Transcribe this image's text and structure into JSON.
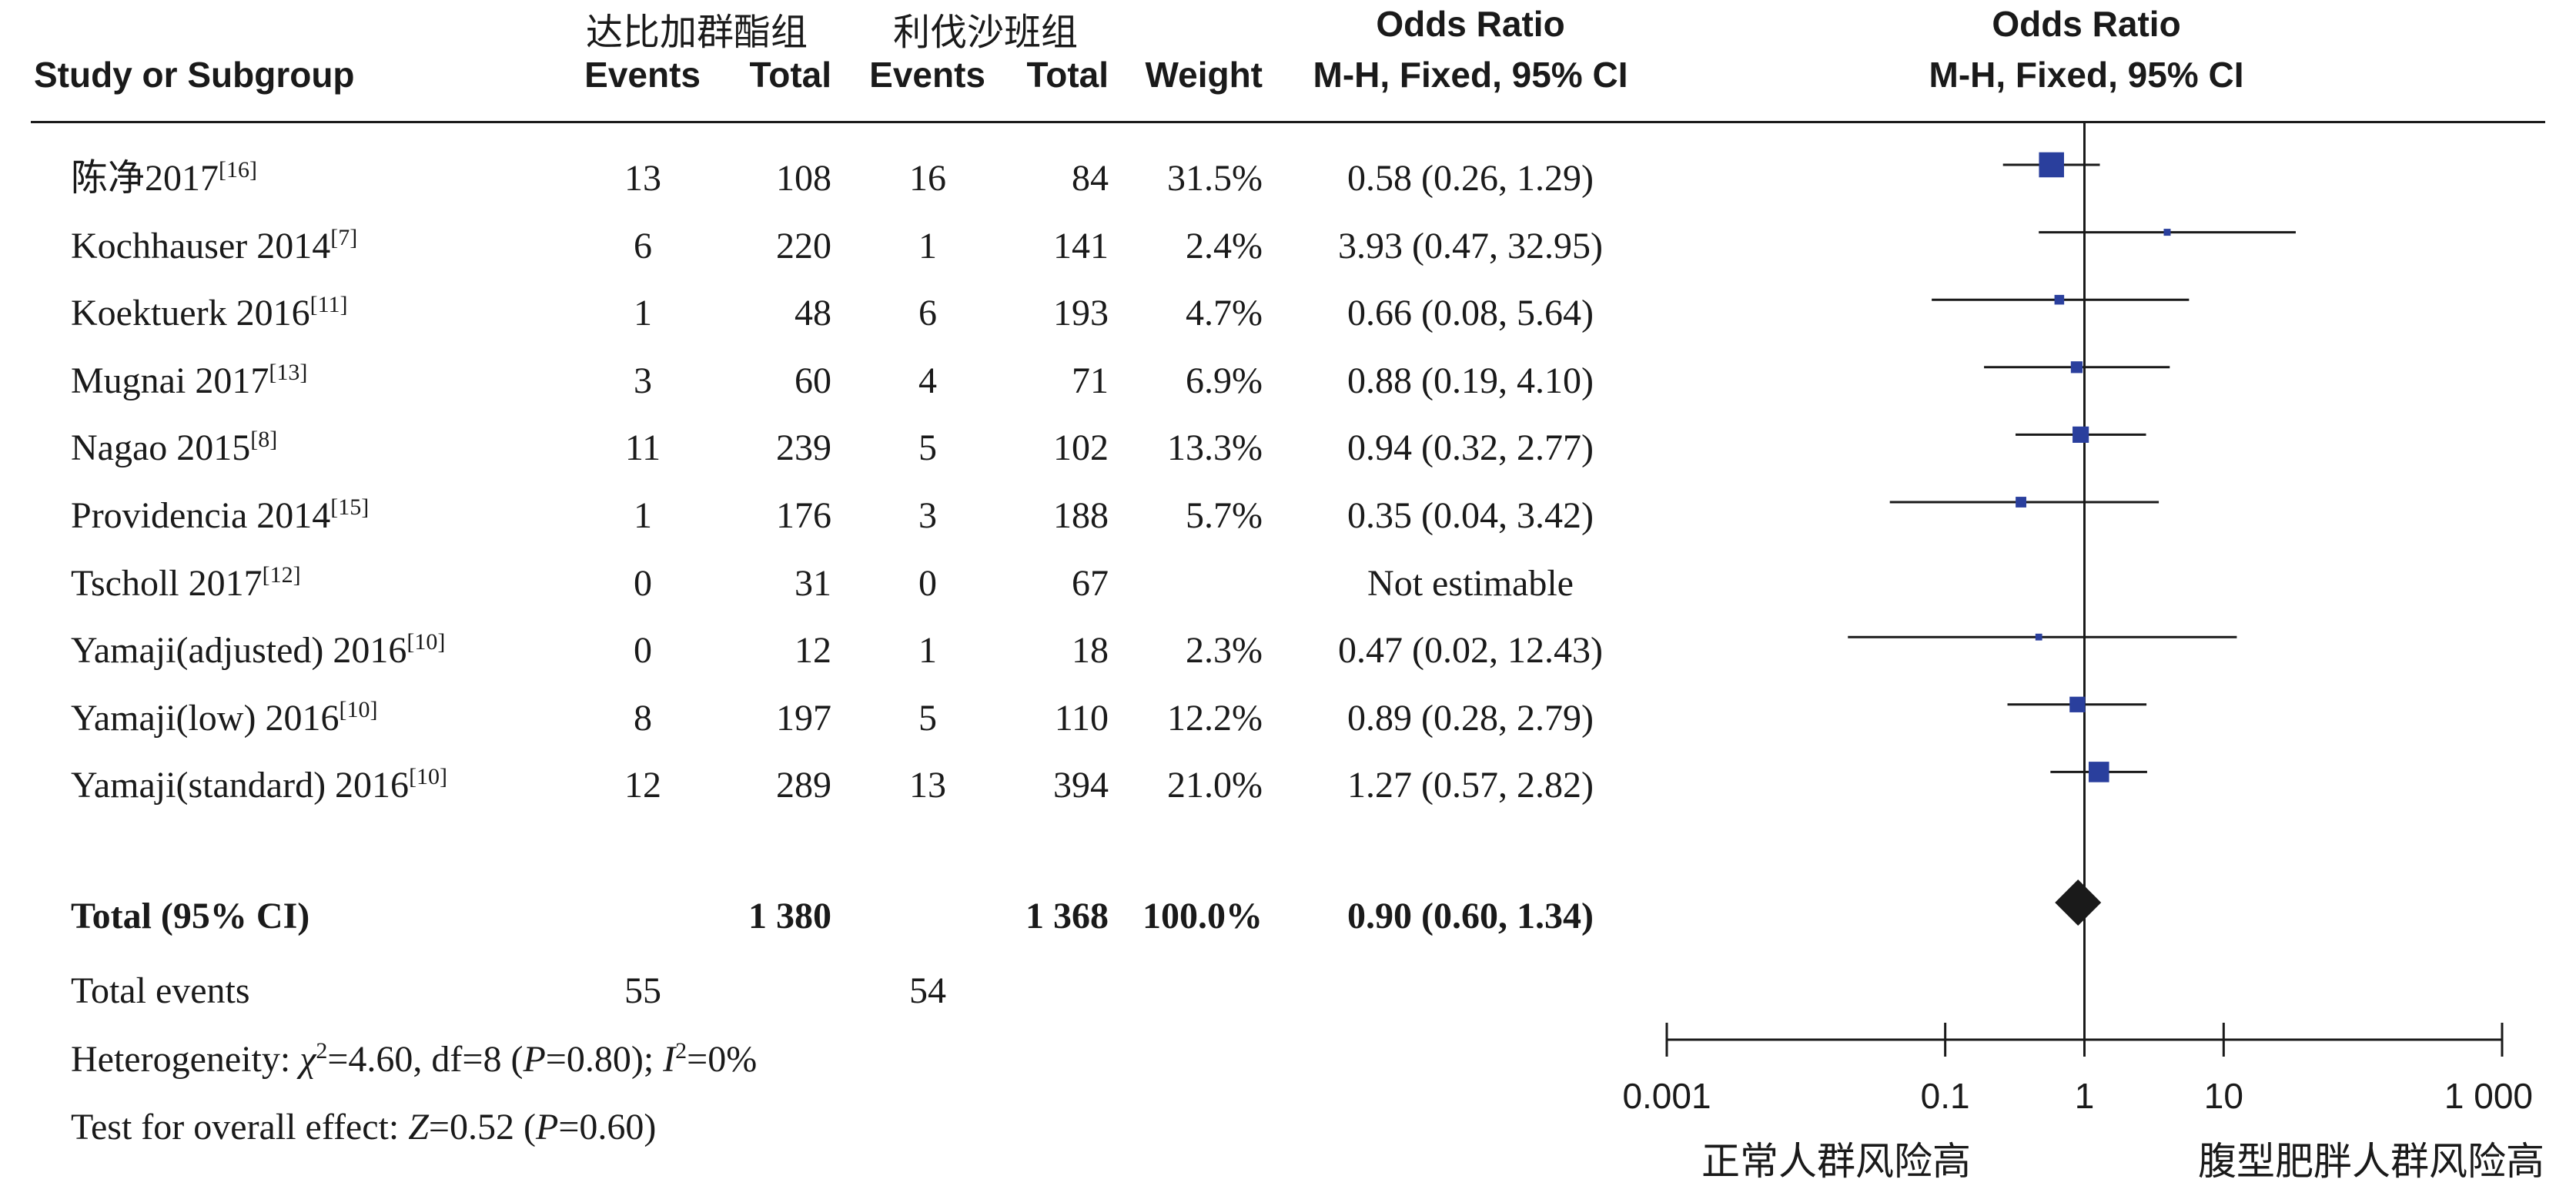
{
  "header": {
    "group1": "达比加群酯组",
    "group2": "利伐沙班组",
    "study": "Study or Subgroup",
    "events": "Events",
    "total": "Total",
    "weight": "Weight",
    "or_title": "Odds Ratio",
    "or_method": "M-H, Fixed, 95% CI",
    "plot_title": "Odds Ratio",
    "plot_method": "M-H, Fixed, 95% CI"
  },
  "rows": [
    {
      "study": "陈净2017",
      "ref": "[16]",
      "e1": "13",
      "t1": "108",
      "e2": "16",
      "t2": "84",
      "weight": "31.5%",
      "ci_text": "0.58 (0.26, 1.29)"
    },
    {
      "study": "Kochhauser 2014",
      "ref": "[7]",
      "e1": "6",
      "t1": "220",
      "e2": "1",
      "t2": "141",
      "weight": "2.4%",
      "ci_text": "3.93 (0.47, 32.95)"
    },
    {
      "study": "Koektuerk 2016",
      "ref": "[11]",
      "e1": "1",
      "t1": "48",
      "e2": "6",
      "t2": "193",
      "weight": "4.7%",
      "ci_text": "0.66 (0.08, 5.64)"
    },
    {
      "study": "Mugnai 2017",
      "ref": "[13]",
      "e1": "3",
      "t1": "60",
      "e2": "4",
      "t2": "71",
      "weight": "6.9%",
      "ci_text": "0.88 (0.19, 4.10)"
    },
    {
      "study": "Nagao 2015",
      "ref": "[8]",
      "e1": "11",
      "t1": "239",
      "e2": "5",
      "t2": "102",
      "weight": "13.3%",
      "ci_text": "0.94 (0.32, 2.77)"
    },
    {
      "study": "Providencia 2014",
      "ref": "[15]",
      "e1": "1",
      "t1": "176",
      "e2": "3",
      "t2": "188",
      "weight": "5.7%",
      "ci_text": "0.35 (0.04, 3.42)"
    },
    {
      "study": "Tscholl 2017",
      "ref": "[12]",
      "e1": "0",
      "t1": "31",
      "e2": "0",
      "t2": "67",
      "weight": "",
      "ci_text": "Not estimable"
    },
    {
      "study": "Yamaji(adjusted) 2016",
      "ref": "[10]",
      "e1": "0",
      "t1": "12",
      "e2": "1",
      "t2": "18",
      "weight": "2.3%",
      "ci_text": "0.47 (0.02, 12.43)"
    },
    {
      "study": "Yamaji(low) 2016",
      "ref": "[10]",
      "e1": "8",
      "t1": "197",
      "e2": "5",
      "t2": "110",
      "weight": "12.2%",
      "ci_text": "0.89 (0.28, 2.79)"
    },
    {
      "study": "Yamaji(standard) 2016",
      "ref": "[10]",
      "e1": "12",
      "t1": "289",
      "e2": "13",
      "t2": "394",
      "weight": "21.0%",
      "ci_text": "1.27 (0.57, 2.82)"
    }
  ],
  "total": {
    "label": "Total (95% CI)",
    "t1": "1 380",
    "t2": "1 368",
    "weight": "100.0%",
    "ci_text": "0.90 (0.60, 1.34)"
  },
  "total_events": {
    "label": "Total events",
    "e1": "55",
    "e2": "54"
  },
  "heterogeneity": {
    "prefix": "Heterogeneity: ",
    "chi": "χ",
    "chi_rest": "=4.60, df=8 (",
    "p": "P",
    "p_rest": "=0.80); ",
    "i": "I",
    "i_rest": "=0%"
  },
  "overall_effect": {
    "prefix": "Test for overall effect: ",
    "z": "Z",
    "z_rest": "=0.52 (",
    "p": "P",
    "p_rest": "=0.60)"
  },
  "axis": {
    "ticks": [
      0.001,
      0.1,
      1,
      10,
      1000
    ],
    "tick_labels": [
      "0.001",
      "0.1",
      "1",
      "10",
      "1 000"
    ],
    "left_label": "正常人群风险高",
    "right_label": "腹型肥胖人群风险高"
  },
  "colors": {
    "marker": "#2a3f9d",
    "diamond": "#1a1a1a",
    "line": "#1a1a1a"
  },
  "chart_data": {
    "type": "forest",
    "scale": "log",
    "xlim": [
      0.001,
      1000
    ],
    "reference_line": 1,
    "studies": [
      {
        "name": "陈净2017",
        "or": 0.58,
        "lo": 0.26,
        "hi": 1.29,
        "weight": 31.5
      },
      {
        "name": "Kochhauser 2014",
        "or": 3.93,
        "lo": 0.47,
        "hi": 32.95,
        "weight": 2.4
      },
      {
        "name": "Koektuerk 2016",
        "or": 0.66,
        "lo": 0.08,
        "hi": 5.64,
        "weight": 4.7
      },
      {
        "name": "Mugnai 2017",
        "or": 0.88,
        "lo": 0.19,
        "hi": 4.1,
        "weight": 6.9
      },
      {
        "name": "Nagao 2015",
        "or": 0.94,
        "lo": 0.32,
        "hi": 2.77,
        "weight": 13.3
      },
      {
        "name": "Providencia 2014",
        "or": 0.35,
        "lo": 0.04,
        "hi": 3.42,
        "weight": 5.7
      },
      {
        "name": "Tscholl 2017",
        "or": null,
        "lo": null,
        "hi": null,
        "weight": null
      },
      {
        "name": "Yamaji(adjusted) 2016",
        "or": 0.47,
        "lo": 0.02,
        "hi": 12.43,
        "weight": 2.3
      },
      {
        "name": "Yamaji(low) 2016",
        "or": 0.89,
        "lo": 0.28,
        "hi": 2.79,
        "weight": 12.2
      },
      {
        "name": "Yamaji(standard) 2016",
        "or": 1.27,
        "lo": 0.57,
        "hi": 2.82,
        "weight": 21.0
      }
    ],
    "pooled": {
      "name": "Total (95% CI)",
      "or": 0.9,
      "lo": 0.6,
      "hi": 1.34
    }
  }
}
